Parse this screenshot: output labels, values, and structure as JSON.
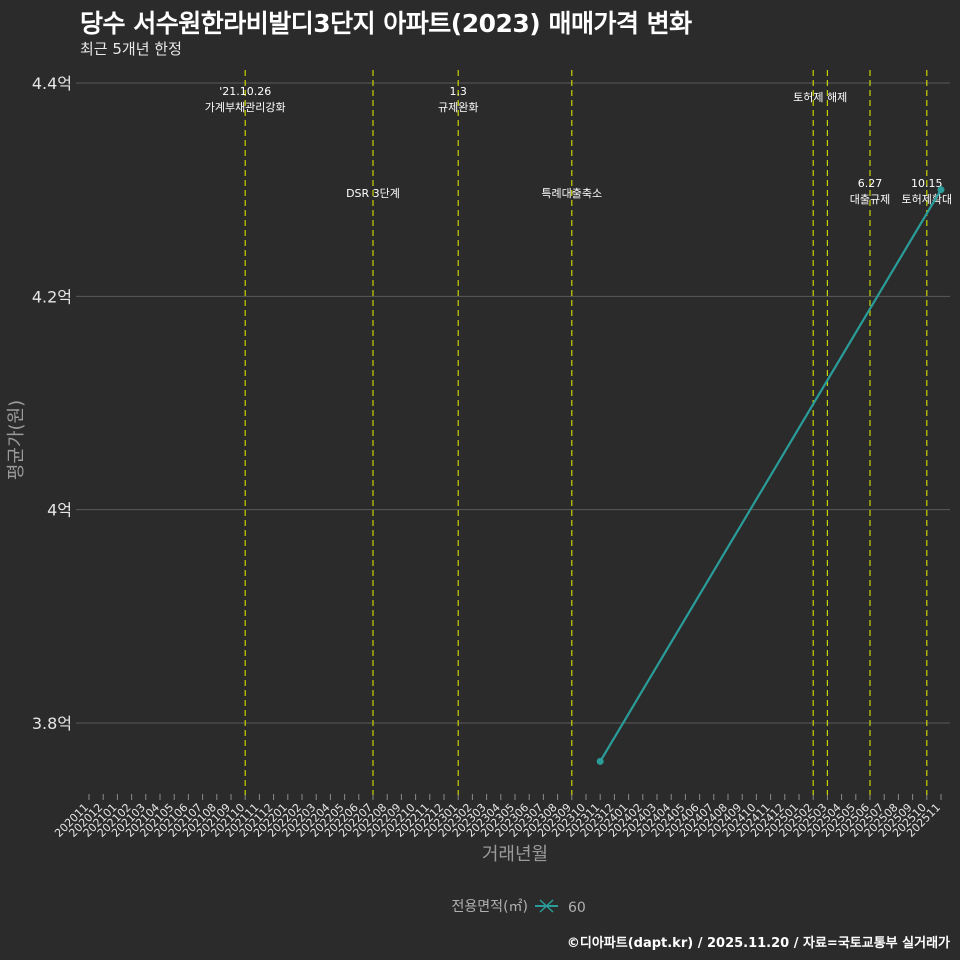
{
  "header": {
    "title": "당수 서수원한라비발디3단지 아파트(2023) 매매가격 변화",
    "subtitle": "최근 5개년 한정"
  },
  "caption": "©디아파트(dapt.kr) / 2025.11.20 / 자료=국토교통부 실거래가",
  "colors": {
    "background": "#2b2b2b",
    "grid": "#5a5a5a",
    "event_line": "#c8d400",
    "series": "#2a9d9a"
  },
  "chart_data": {
    "type": "line",
    "title": "당수 서수원한라비발디3단지 아파트(2023) 매매가격 변화",
    "subtitle": "최근 5개년 한정",
    "xlabel": "거래년월",
    "ylabel": "평균가(원)",
    "ylim": [
      3.73,
      4.42
    ],
    "y_ticks": [
      {
        "value": 4.4,
        "label": "4.4억"
      },
      {
        "value": 4.2,
        "label": "4.2억"
      },
      {
        "value": 4.0,
        "label": "4억"
      },
      {
        "value": 3.8,
        "label": "3.8억"
      }
    ],
    "categories": [
      "202011",
      "202012",
      "202101",
      "202102",
      "202103",
      "202104",
      "202105",
      "202106",
      "202107",
      "202108",
      "202109",
      "202110",
      "202111",
      "202112",
      "202201",
      "202202",
      "202203",
      "202204",
      "202205",
      "202206",
      "202207",
      "202208",
      "202209",
      "202210",
      "202211",
      "202212",
      "202301",
      "202302",
      "202303",
      "202304",
      "202305",
      "202306",
      "202307",
      "202308",
      "202309",
      "202310",
      "202311",
      "202312",
      "202401",
      "202402",
      "202403",
      "202404",
      "202405",
      "202406",
      "202407",
      "202408",
      "202409",
      "202410",
      "202411",
      "202412",
      "202501",
      "202502",
      "202503",
      "202504",
      "202505",
      "202506",
      "202507",
      "202508",
      "202509",
      "202510",
      "202511"
    ],
    "legend": {
      "title": "전용면적(㎡)",
      "position": "bottom"
    },
    "grid": true,
    "series": [
      {
        "name": "60",
        "points": [
          {
            "x": "202311",
            "y": 3.764
          },
          {
            "x": "202511",
            "y": 4.3
          }
        ]
      }
    ],
    "annotations": [
      {
        "x": "202110",
        "line1": "'21.10.26",
        "line2": "가계부채관리강화",
        "row": "top"
      },
      {
        "x": "202207",
        "line1": "",
        "line2": "DSR 3단계",
        "row": "mid"
      },
      {
        "x": "202301",
        "line1": "1.3",
        "line2": "규제완화",
        "row": "top"
      },
      {
        "x": "202309",
        "line1": "",
        "line2": "특례대출축소",
        "row": "mid"
      },
      {
        "x": "202502",
        "line1": "",
        "line2": "토허제 해제",
        "row": "top2"
      },
      {
        "x": "202503",
        "line1": "",
        "line2": "",
        "row": "none"
      },
      {
        "x": "202506",
        "line1": "6.27",
        "line2": "대출규제",
        "row": "mid"
      },
      {
        "x": "202510",
        "line1": "10.15",
        "line2": "토허제확대",
        "row": "mid"
      }
    ]
  }
}
